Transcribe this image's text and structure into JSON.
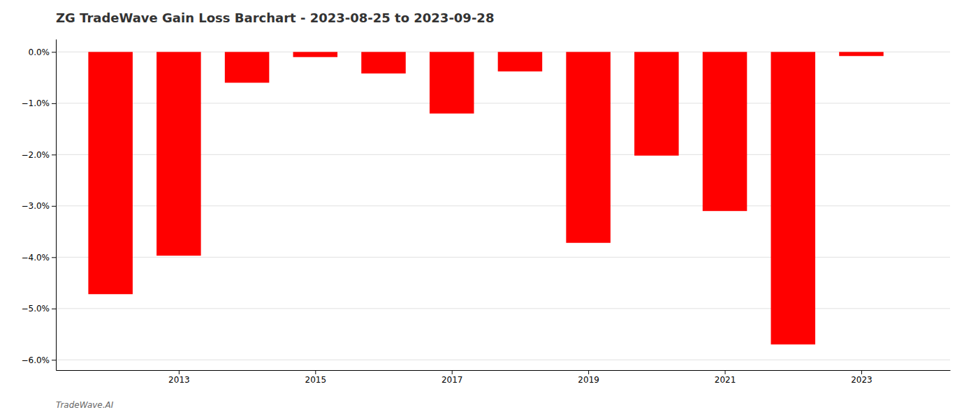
{
  "chart_data": {
    "type": "bar",
    "title": "ZG TradeWave Gain Loss Barchart - 2023-08-25 to 2023-09-28",
    "annotations": [
      "TradeWave.AI"
    ],
    "x": [
      2012,
      2013,
      2014,
      2015,
      2016,
      2017,
      2018,
      2019,
      2020,
      2021,
      2022,
      2023
    ],
    "values": [
      -4.72,
      -3.97,
      -0.6,
      -0.1,
      -0.42,
      -1.2,
      -0.38,
      -3.72,
      -2.02,
      -3.1,
      -5.7,
      -0.08
    ],
    "color": "#ff0000",
    "xlim": [
      2011.2,
      2024.3
    ],
    "xticks": [
      2013,
      2015,
      2017,
      2019,
      2021,
      2023
    ],
    "ylim": [
      -6.2,
      0.25
    ],
    "yticks": [
      {
        "value": 0.0,
        "label": "0.0%"
      },
      {
        "value": -1.0,
        "label": "−1.0%"
      },
      {
        "value": -2.0,
        "label": "−2.0%"
      },
      {
        "value": -3.0,
        "label": "−3.0%"
      },
      {
        "value": -4.0,
        "label": "−4.0%"
      },
      {
        "value": -5.0,
        "label": "−5.0%"
      },
      {
        "value": -6.0,
        "label": "−6.0%"
      }
    ],
    "grid": true
  }
}
